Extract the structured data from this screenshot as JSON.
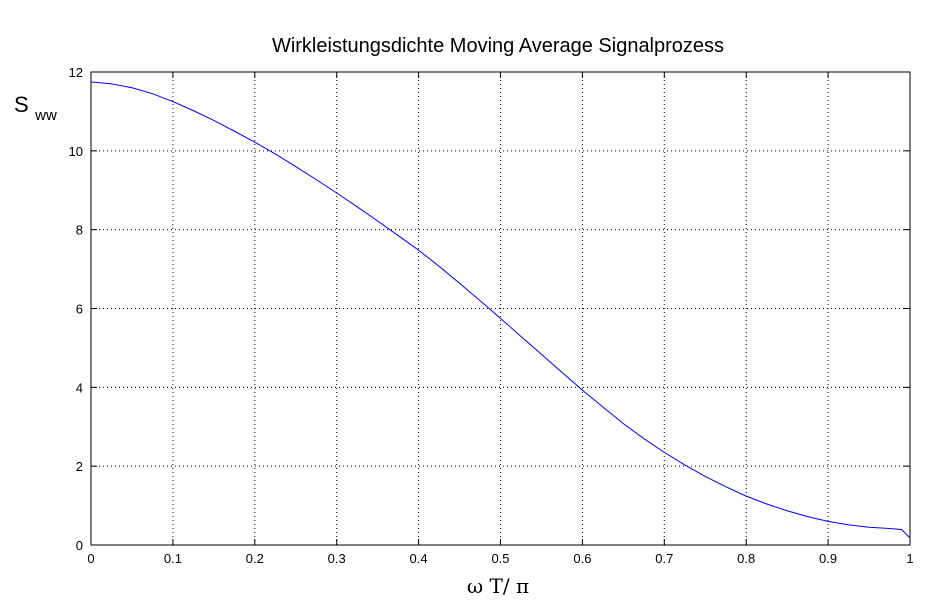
{
  "chart_data": {
    "type": "line",
    "title": "Wirkleistungsdichte Moving Average Signalprozess",
    "xlabel": "ω T/ π",
    "ylabel": {
      "main": "S",
      "subscript": "ww"
    },
    "xlim": [
      0,
      1
    ],
    "ylim": [
      0,
      12
    ],
    "xticks": [
      0,
      0.1,
      0.2,
      0.3,
      0.4,
      0.5,
      0.6,
      0.7,
      0.8,
      0.9,
      1
    ],
    "xtick_labels": [
      "0",
      "0.1",
      "0.2",
      "0.3",
      "0.4",
      "0.5",
      "0.6",
      "0.7",
      "0.8",
      "0.9",
      "1"
    ],
    "yticks": [
      0,
      2,
      4,
      6,
      8,
      10,
      12
    ],
    "ytick_labels": [
      "0",
      "2",
      "4",
      "6",
      "8",
      "10",
      "12"
    ],
    "grid": true,
    "line_color": "#0000ff",
    "series": [
      {
        "x": [
          0,
          0.025,
          0.05,
          0.075,
          0.1,
          0.125,
          0.15,
          0.175,
          0.2,
          0.225,
          0.25,
          0.275,
          0.3,
          0.325,
          0.35,
          0.375,
          0.4,
          0.425,
          0.45,
          0.475,
          0.5,
          0.525,
          0.55,
          0.575,
          0.6,
          0.625,
          0.65,
          0.675,
          0.7,
          0.725,
          0.75,
          0.775,
          0.8,
          0.825,
          0.85,
          0.875,
          0.9,
          0.925,
          0.95,
          0.975,
          0.99,
          1
        ],
        "y": [
          11.75,
          11.7,
          11.6,
          11.45,
          11.25,
          11.02,
          10.77,
          10.5,
          10.22,
          9.92,
          9.6,
          9.27,
          8.93,
          8.58,
          8.22,
          7.85,
          7.48,
          7.07,
          6.64,
          6.2,
          5.75,
          5.29,
          4.84,
          4.38,
          3.93,
          3.5,
          3.08,
          2.7,
          2.35,
          2.03,
          1.74,
          1.48,
          1.24,
          1.04,
          0.87,
          0.72,
          0.6,
          0.51,
          0.45,
          0.42,
          0.39,
          0.18
        ]
      }
    ]
  }
}
